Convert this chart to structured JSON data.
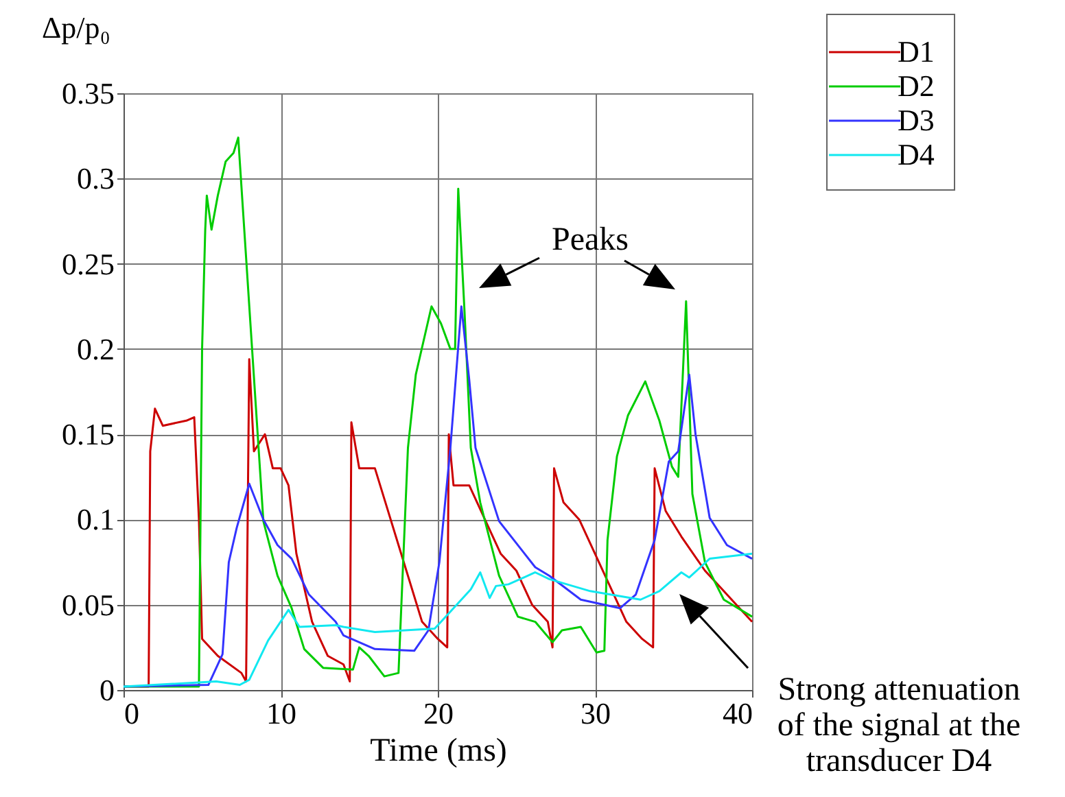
{
  "chart_data": {
    "type": "line",
    "xlabel": "Time (ms)",
    "ylabel": "Δp/p₀",
    "xlim": [
      0,
      40
    ],
    "xticks": [
      0,
      10,
      20,
      30,
      40
    ],
    "ylim": [
      0,
      0.35
    ],
    "yticks": [
      0,
      0.05,
      0.1,
      0.15,
      0.2,
      0.25,
      0.3,
      0.35
    ],
    "grid": true,
    "legend": "right",
    "line_style": "solid",
    "marker": "none",
    "annotations": [
      "Peaks",
      "Strong attenuation of the signal at the transducer D4"
    ],
    "series": [
      {
        "name": "D1",
        "color": "#cc0000",
        "x": [
          0,
          1.6,
          1.7,
          2,
          2.5,
          4,
          4.5,
          4.8,
          5,
          6,
          7.5,
          7.8,
          8,
          8.3,
          9,
          9.5,
          10,
          10.5,
          11,
          12,
          13,
          14,
          14.4,
          14.5,
          15,
          16,
          17,
          18,
          19,
          20,
          20.6,
          20.7,
          21,
          22,
          23,
          24,
          25,
          26,
          27,
          27.3,
          27.4,
          28,
          29,
          30,
          31,
          32,
          33,
          33.7,
          33.8,
          34.5,
          35.5,
          37,
          38,
          39,
          40
        ],
        "values": [
          0.002,
          0.002,
          0.14,
          0.165,
          0.155,
          0.158,
          0.16,
          0.1,
          0.03,
          0.02,
          0.01,
          0.005,
          0.194,
          0.14,
          0.15,
          0.13,
          0.13,
          0.12,
          0.08,
          0.04,
          0.02,
          0.015,
          0.005,
          0.157,
          0.13,
          0.13,
          0.1,
          0.07,
          0.04,
          0.03,
          0.025,
          0.15,
          0.12,
          0.12,
          0.1,
          0.08,
          0.07,
          0.05,
          0.04,
          0.025,
          0.13,
          0.11,
          0.1,
          0.08,
          0.06,
          0.04,
          0.03,
          0.025,
          0.13,
          0.105,
          0.09,
          0.07,
          0.06,
          0.05,
          0.04
        ]
      },
      {
        "name": "D2",
        "color": "#00cc00",
        "x": [
          0,
          4.8,
          5,
          5.2,
          5.3,
          5.6,
          6,
          6.5,
          7,
          7.3,
          8.9,
          9.8,
          10.7,
          11.5,
          12.7,
          14.6,
          15,
          15.6,
          16.6,
          17.5,
          18.1,
          18.6,
          19.6,
          20.2,
          20.8,
          21.1,
          21.3,
          21.7,
          22.1,
          22.7,
          23.9,
          25.1,
          26.2,
          27.3,
          27.9,
          29.1,
          30.1,
          30.6,
          30.8,
          31.4,
          32.1,
          33.2,
          34.1,
          34.9,
          35.3,
          35.8,
          36.2,
          37,
          38.2,
          40
        ],
        "values": [
          0.002,
          0.002,
          0.2,
          0.27,
          0.29,
          0.27,
          0.29,
          0.31,
          0.315,
          0.324,
          0.099,
          0.067,
          0.048,
          0.024,
          0.013,
          0.012,
          0.025,
          0.02,
          0.008,
          0.01,
          0.142,
          0.185,
          0.225,
          0.215,
          0.2,
          0.2,
          0.294,
          0.222,
          0.142,
          0.11,
          0.067,
          0.043,
          0.04,
          0.028,
          0.035,
          0.037,
          0.022,
          0.023,
          0.088,
          0.137,
          0.161,
          0.181,
          0.158,
          0.131,
          0.125,
          0.228,
          0.115,
          0.075,
          0.053,
          0.043
        ]
      },
      {
        "name": "D3",
        "color": "#3333ff",
        "x": [
          0,
          5.4,
          6.3,
          6.7,
          7.2,
          8,
          8.9,
          9.8,
          10.7,
          11.8,
          13.5,
          14,
          16,
          18.5,
          19.4,
          20.1,
          20.8,
          21.5,
          22,
          22.4,
          23.9,
          26.2,
          27.1,
          29.1,
          31.6,
          32.6,
          33.8,
          34.7,
          35.3,
          36,
          36.4,
          37.3,
          38.4,
          40
        ],
        "values": [
          0.002,
          0.003,
          0.021,
          0.075,
          0.095,
          0.121,
          0.1,
          0.085,
          0.077,
          0.056,
          0.04,
          0.032,
          0.024,
          0.023,
          0.035,
          0.075,
          0.142,
          0.225,
          0.182,
          0.142,
          0.099,
          0.072,
          0.067,
          0.053,
          0.048,
          0.056,
          0.088,
          0.134,
          0.14,
          0.185,
          0.15,
          0.101,
          0.085,
          0.077
        ]
      },
      {
        "name": "D4",
        "color": "#11e8f0",
        "x": [
          0,
          5.9,
          7.4,
          8,
          9.2,
          10.5,
          11.2,
          13.5,
          14,
          16,
          19.8,
          20.7,
          22.1,
          22.7,
          23.3,
          23.7,
          24.5,
          26.2,
          27.1,
          29.7,
          32.9,
          34.1,
          35.5,
          36,
          37.3,
          40
        ],
        "values": [
          0.002,
          0.005,
          0.003,
          0.006,
          0.029,
          0.047,
          0.037,
          0.038,
          0.037,
          0.034,
          0.036,
          0.045,
          0.059,
          0.069,
          0.054,
          0.061,
          0.062,
          0.069,
          0.065,
          0.058,
          0.053,
          0.058,
          0.069,
          0.066,
          0.077,
          0.08
        ]
      }
    ]
  }
}
